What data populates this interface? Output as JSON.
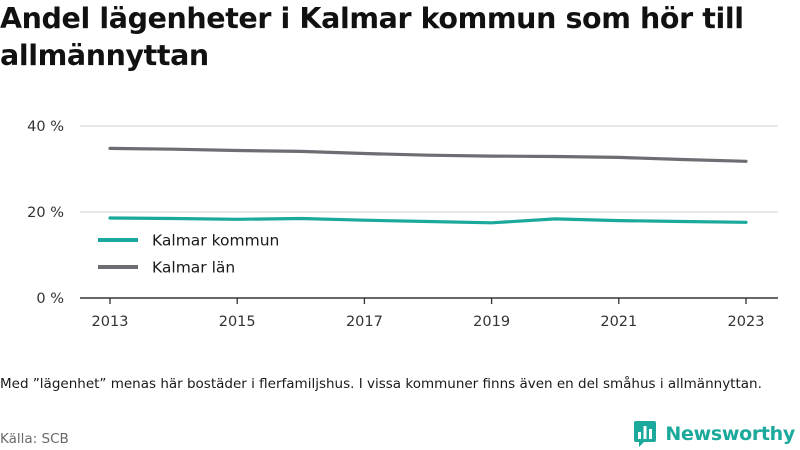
{
  "title": "Andel lägenheter i Kalmar kommun som hör till allmännyttan",
  "footnote": "Med ”lägenhet” menas här bostäder i flerfamiljshus. I vissa kommuner finns även en del småhus i allmännyttan.",
  "source": "Källa: SCB",
  "brand": {
    "name": "Newsworthy",
    "icon": "bar-chart-speech-bubble-icon",
    "color": "#1aa99b"
  },
  "chart_data": {
    "type": "line",
    "x": [
      2013,
      2014,
      2015,
      2016,
      2017,
      2018,
      2019,
      2020,
      2021,
      2022,
      2023
    ],
    "x_ticks": [
      2013,
      2015,
      2017,
      2019,
      2021,
      2023
    ],
    "y_ticks": [
      0,
      20,
      40
    ],
    "y_tick_labels": [
      "0 %",
      "20 %",
      "40 %"
    ],
    "ylim": [
      0,
      40
    ],
    "grid": "horizontal",
    "legend_position": "left",
    "series": [
      {
        "name": "Kalmar kommun",
        "color": "#1aa99b",
        "values": [
          18.6,
          18.5,
          18.3,
          18.5,
          18.1,
          17.8,
          17.5,
          18.4,
          18.0,
          17.8,
          17.6
        ]
      },
      {
        "name": "Kalmar län",
        "color": "#6e6d73",
        "values": [
          34.8,
          34.6,
          34.3,
          34.1,
          33.6,
          33.2,
          33.0,
          32.9,
          32.7,
          32.2,
          31.8
        ]
      }
    ]
  }
}
